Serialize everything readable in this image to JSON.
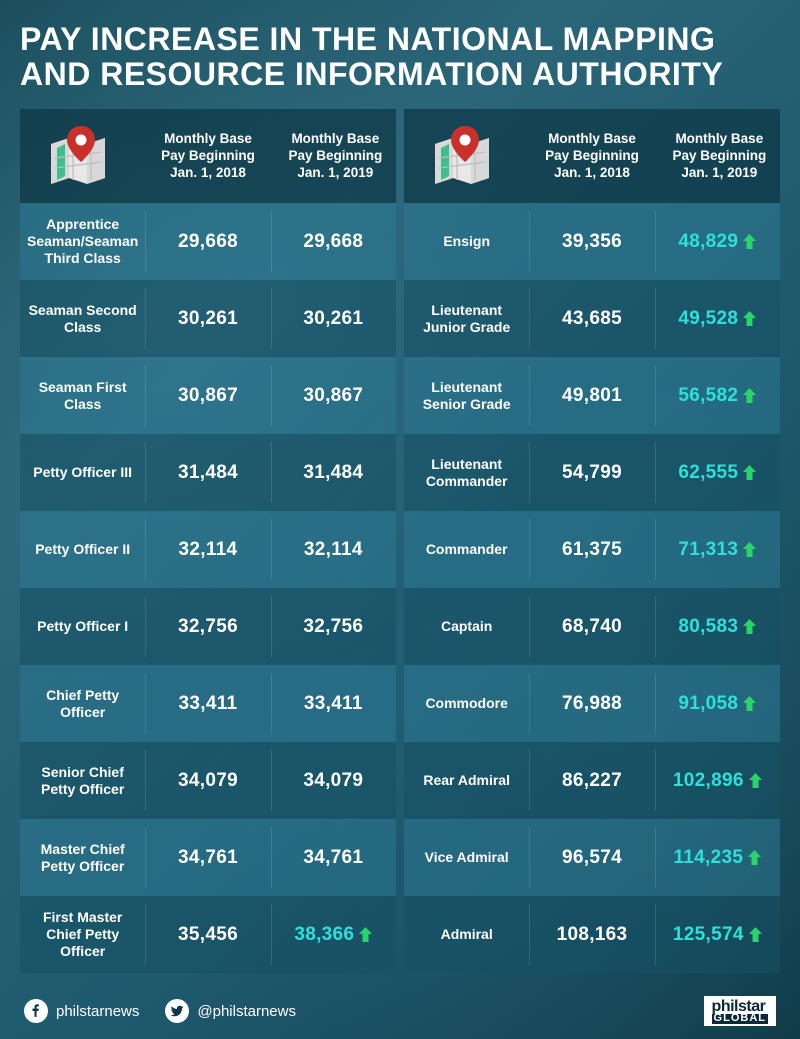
{
  "title": "PAY INCREASE IN THE NATIONAL MAPPING AND RESOURCE INFORMATION AUTHORITY",
  "columns": {
    "c2018": "Monthly Base Pay Beginning Jan. 1, 2018",
    "c2019": "Monthly Base Pay Beginning Jan. 1, 2019"
  },
  "colors": {
    "highlight": "#2de0d8",
    "arrow": "#2bd46a",
    "text": "#ffffff"
  },
  "left": [
    {
      "rank": "Apprentice Seaman/Seaman Third Class",
      "y2018": "29,668",
      "y2019": "29,668",
      "inc": false
    },
    {
      "rank": "Seaman Second Class",
      "y2018": "30,261",
      "y2019": "30,261",
      "inc": false
    },
    {
      "rank": "Seaman First Class",
      "y2018": "30,867",
      "y2019": "30,867",
      "inc": false
    },
    {
      "rank": "Petty Officer III",
      "y2018": "31,484",
      "y2019": "31,484",
      "inc": false
    },
    {
      "rank": "Petty Officer II",
      "y2018": "32,114",
      "y2019": "32,114",
      "inc": false
    },
    {
      "rank": "Petty Officer I",
      "y2018": "32,756",
      "y2019": "32,756",
      "inc": false
    },
    {
      "rank": "Chief Petty Officer",
      "y2018": "33,411",
      "y2019": "33,411",
      "inc": false
    },
    {
      "rank": "Senior Chief Petty Officer",
      "y2018": "34,079",
      "y2019": "34,079",
      "inc": false
    },
    {
      "rank": "Master Chief Petty Officer",
      "y2018": "34,761",
      "y2019": "34,761",
      "inc": false
    },
    {
      "rank": "First Master Chief Petty Officer",
      "y2018": "35,456",
      "y2019": "38,366",
      "inc": true
    }
  ],
  "right": [
    {
      "rank": "Ensign",
      "y2018": "39,356",
      "y2019": "48,829",
      "inc": true
    },
    {
      "rank": "Lieutenant Junior Grade",
      "y2018": "43,685",
      "y2019": "49,528",
      "inc": true
    },
    {
      "rank": "Lieutenant Senior Grade",
      "y2018": "49,801",
      "y2019": "56,582",
      "inc": true
    },
    {
      "rank": "Lieutenant Commander",
      "y2018": "54,799",
      "y2019": "62,555",
      "inc": true
    },
    {
      "rank": "Commander",
      "y2018": "61,375",
      "y2019": "71,313",
      "inc": true
    },
    {
      "rank": "Captain",
      "y2018": "68,740",
      "y2019": "80,583",
      "inc": true
    },
    {
      "rank": "Commodore",
      "y2018": "76,988",
      "y2019": "91,058",
      "inc": true
    },
    {
      "rank": "Rear Admiral",
      "y2018": "86,227",
      "y2019": "102,896",
      "inc": true
    },
    {
      "rank": "Vice Admiral",
      "y2018": "96,574",
      "y2019": "114,235",
      "inc": true
    },
    {
      "rank": "Admiral",
      "y2018": "108,163",
      "y2019": "125,574",
      "inc": true
    }
  ],
  "footer": {
    "fb": "philstarnews",
    "tw": "@philstarnews",
    "brand1": "philstar",
    "brand2": "GLOBAL"
  }
}
